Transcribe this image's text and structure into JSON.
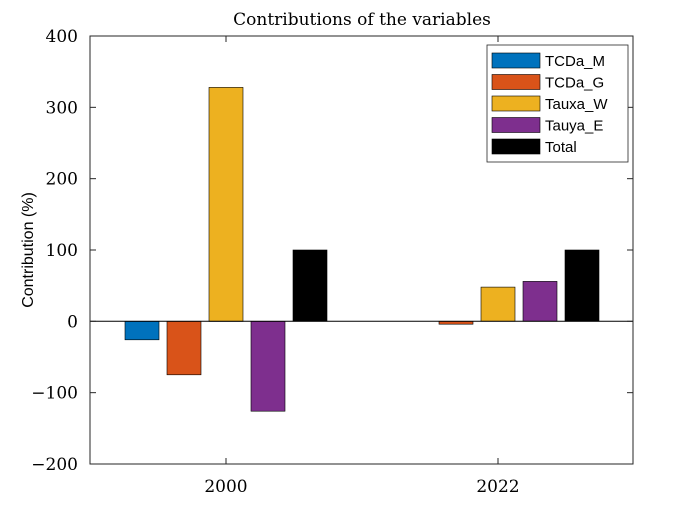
{
  "chart_data": {
    "type": "bar",
    "title": "Contributions of the variables",
    "xlabel": "",
    "ylabel": "Contribution (%)",
    "categories": [
      "2000",
      "2022"
    ],
    "ylim": [
      -200,
      400
    ],
    "yticks": [
      -200,
      -100,
      0,
      100,
      200,
      300,
      400
    ],
    "grid": false,
    "legend_position": "top-right",
    "series": [
      {
        "name": "TCDa_M",
        "color": "#0072BD",
        "values": [
          -26,
          0
        ]
      },
      {
        "name": "TCDa_G",
        "color": "#D95319",
        "values": [
          -75,
          -4
        ]
      },
      {
        "name": "Tauxa_W",
        "color": "#EDB120",
        "values": [
          328,
          48
        ]
      },
      {
        "name": "Tauya_E",
        "color": "#7E2F8E",
        "values": [
          -126,
          56
        ]
      },
      {
        "name": "Total",
        "color": "#000000",
        "values": [
          100,
          100
        ]
      }
    ]
  }
}
